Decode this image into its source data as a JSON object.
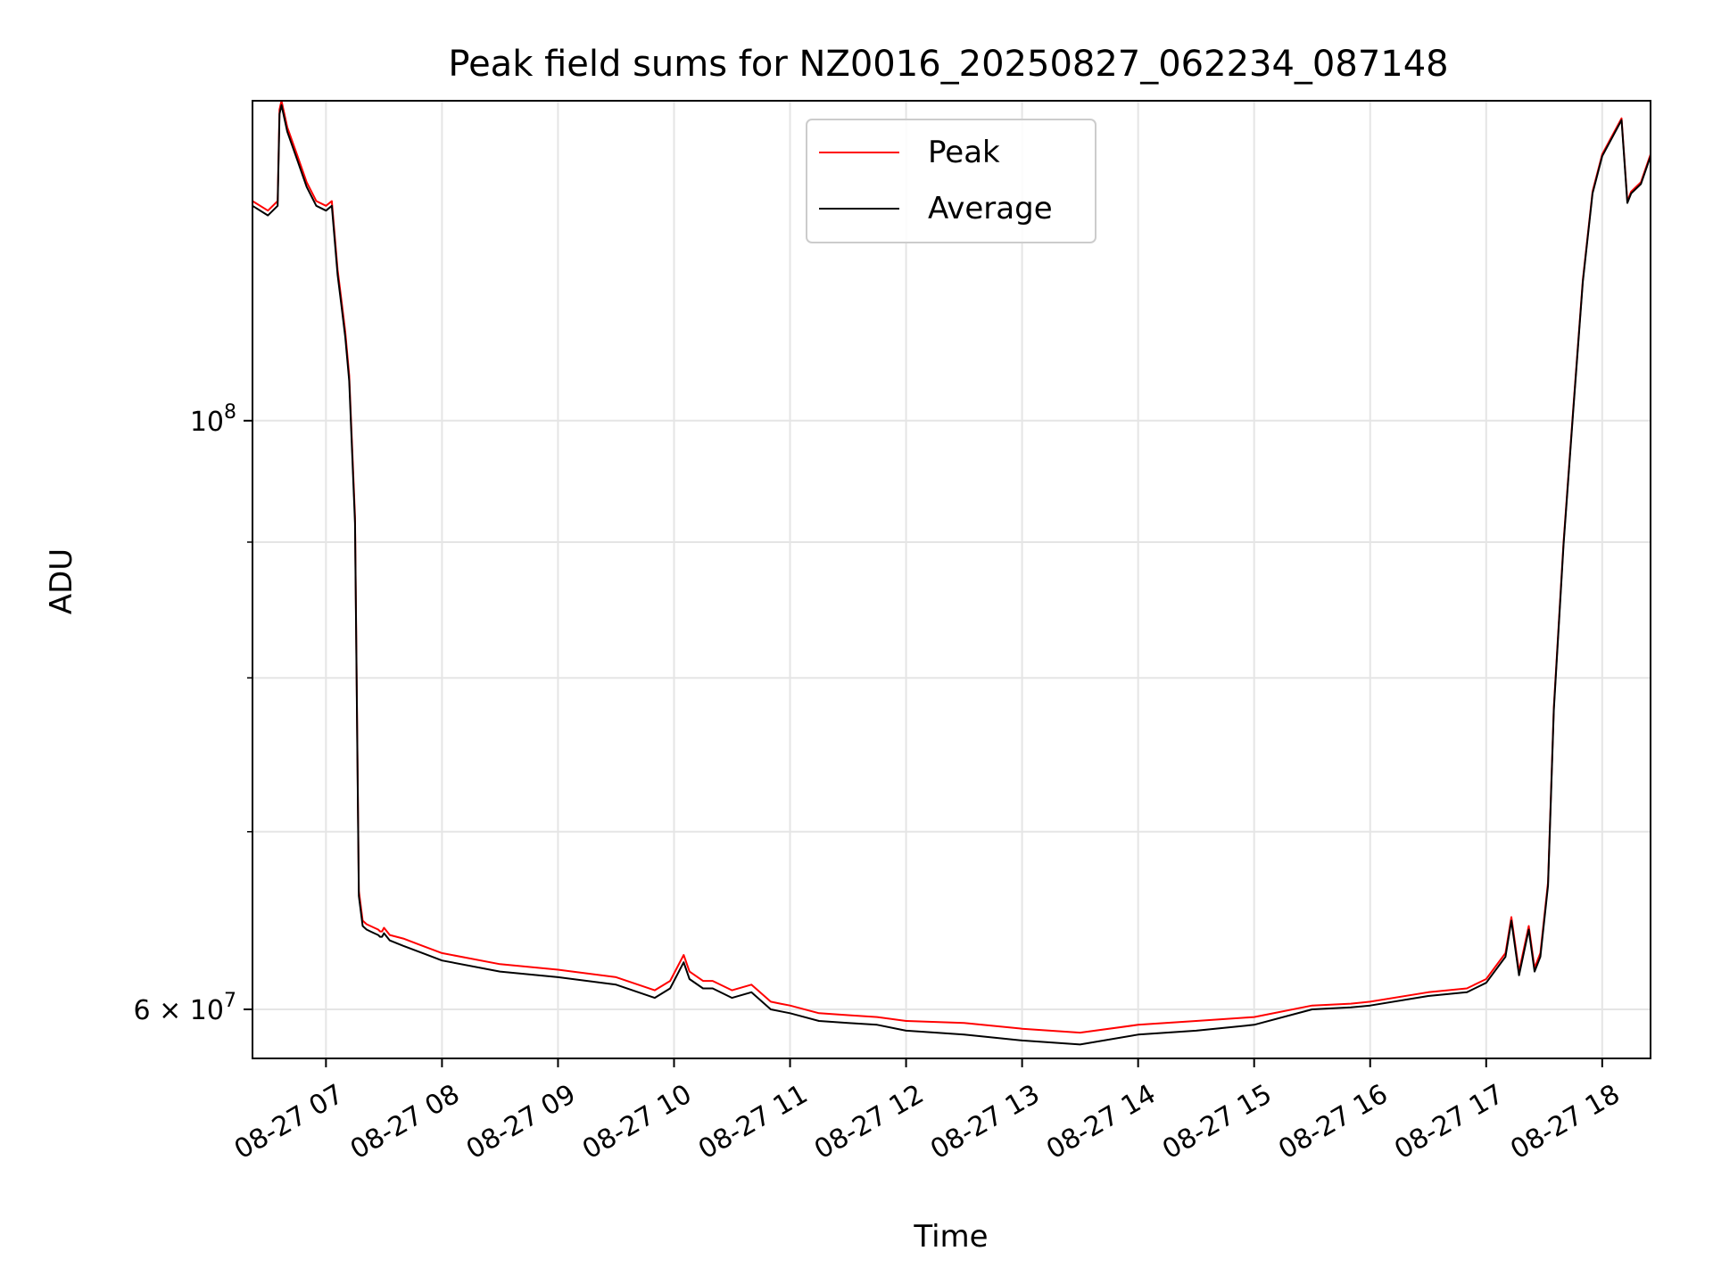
{
  "chart_data": {
    "type": "line",
    "title": "Peak field sums for NZ0016_20250827_062234_087148",
    "xlabel": "Time",
    "ylabel": "ADU",
    "y_scale": "log",
    "grid": true,
    "legend_placement": "top-center",
    "xlim": [
      "2025-08-27 06:22",
      "2025-08-27 18:25"
    ],
    "ylim": [
      57500000,
      132000000
    ],
    "x_ticks": [
      "08-27 07",
      "08-27 08",
      "08-27 09",
      "08-27 10",
      "08-27 11",
      "08-27 12",
      "08-27 13",
      "08-27 14",
      "08-27 15",
      "08-27 16",
      "08-27 17",
      "08-27 18"
    ],
    "y_major_ticks": [
      {
        "value": 100000000,
        "base": "10",
        "exp": "8"
      },
      {
        "value": 60000000,
        "base": "6 × 10",
        "exp": "7"
      }
    ],
    "y_minor_ticks": [
      70000000,
      80000000,
      90000000
    ],
    "series": [
      {
        "name": "Peak",
        "color": "#ff0000",
        "x": [
          "06:22",
          "06:30",
          "06:35",
          "06:36",
          "06:37",
          "06:40",
          "06:45",
          "06:50",
          "06:55",
          "07:00",
          "07:03",
          "07:06",
          "07:08",
          "07:10",
          "07:12",
          "07:15",
          "07:17",
          "07:19",
          "07:21",
          "07:23",
          "07:25",
          "07:27",
          "07:28",
          "07:29",
          "07:30",
          "07:33",
          "07:40",
          "07:50",
          "08:00",
          "08:30",
          "09:00",
          "09:30",
          "09:50",
          "09:58",
          "10:05",
          "10:08",
          "10:15",
          "10:20",
          "10:30",
          "10:40",
          "10:50",
          "10:55",
          "11:00",
          "11:15",
          "11:30",
          "11:45",
          "12:00",
          "12:30",
          "13:00",
          "13:30",
          "14:00",
          "14:30",
          "15:00",
          "15:30",
          "15:50",
          "16:00",
          "16:30",
          "16:50",
          "17:00",
          "17:10",
          "17:13",
          "17:17",
          "17:22",
          "17:25",
          "17:28",
          "17:32",
          "17:35",
          "17:40",
          "17:45",
          "17:50",
          "17:55",
          "18:00",
          "18:10",
          "18:13",
          "18:15",
          "18:20",
          "18:25"
        ],
        "y": [
          121000000,
          120000000,
          121000000,
          131000000,
          132000000,
          129000000,
          126000000,
          123000000,
          121000000,
          120500000,
          121000000,
          114000000,
          111000000,
          108000000,
          104000000,
          92000000,
          66500000,
          64800000,
          64600000,
          64500000,
          64400000,
          64300000,
          64200000,
          64200000,
          64400000,
          64000000,
          63800000,
          63400000,
          63000000,
          62400000,
          62100000,
          61700000,
          61000000,
          61500000,
          62900000,
          62000000,
          61500000,
          61500000,
          61000000,
          61300000,
          60400000,
          60300000,
          60200000,
          59800000,
          59700000,
          59600000,
          59400000,
          59300000,
          59000000,
          58800000,
          59200000,
          59400000,
          59600000,
          60200000,
          60300000,
          60400000,
          60900000,
          61100000,
          61600000,
          63000000,
          65000000,
          62000000,
          64500000,
          62200000,
          63000000,
          67000000,
          78000000,
          90000000,
          101000000,
          113000000,
          122000000,
          126000000,
          130000000,
          121000000,
          122000000,
          123000000,
          126000000
        ]
      },
      {
        "name": "Average",
        "color": "#000000",
        "x": [
          "06:22",
          "06:30",
          "06:35",
          "06:36",
          "06:37",
          "06:40",
          "06:45",
          "06:50",
          "06:55",
          "07:00",
          "07:03",
          "07:06",
          "07:08",
          "07:10",
          "07:12",
          "07:15",
          "07:17",
          "07:19",
          "07:21",
          "07:23",
          "07:25",
          "07:27",
          "07:28",
          "07:29",
          "07:30",
          "07:33",
          "07:40",
          "07:50",
          "08:00",
          "08:30",
          "09:00",
          "09:30",
          "09:50",
          "09:58",
          "10:05",
          "10:08",
          "10:15",
          "10:20",
          "10:30",
          "10:40",
          "10:50",
          "10:55",
          "11:00",
          "11:15",
          "11:30",
          "11:45",
          "12:00",
          "12:30",
          "13:00",
          "13:30",
          "14:00",
          "14:30",
          "15:00",
          "15:30",
          "15:50",
          "16:00",
          "16:30",
          "16:50",
          "17:00",
          "17:10",
          "17:13",
          "17:17",
          "17:22",
          "17:25",
          "17:28",
          "17:32",
          "17:35",
          "17:40",
          "17:45",
          "17:50",
          "17:55",
          "18:00",
          "18:10",
          "18:13",
          "18:15",
          "18:20",
          "18:25"
        ],
        "y": [
          120500000,
          119500000,
          120500000,
          130500000,
          131500000,
          128500000,
          125500000,
          122500000,
          120500000,
          120000000,
          120500000,
          113500000,
          110500000,
          107500000,
          103500000,
          91500000,
          66200000,
          64500000,
          64300000,
          64200000,
          64100000,
          64000000,
          63900000,
          63900000,
          64100000,
          63700000,
          63400000,
          63000000,
          62600000,
          62000000,
          61700000,
          61300000,
          60600000,
          61100000,
          62500000,
          61600000,
          61100000,
          61100000,
          60600000,
          60900000,
          60000000,
          59900000,
          59800000,
          59400000,
          59300000,
          59200000,
          58900000,
          58700000,
          58400000,
          58200000,
          58700000,
          58900000,
          59200000,
          60000000,
          60100000,
          60200000,
          60700000,
          60900000,
          61400000,
          62800000,
          64800000,
          61800000,
          64300000,
          62000000,
          62800000,
          66800000,
          77800000,
          89800000,
          100800000,
          112800000,
          121800000,
          125800000,
          129800000,
          120800000,
          121800000,
          122800000,
          125800000
        ]
      }
    ]
  }
}
